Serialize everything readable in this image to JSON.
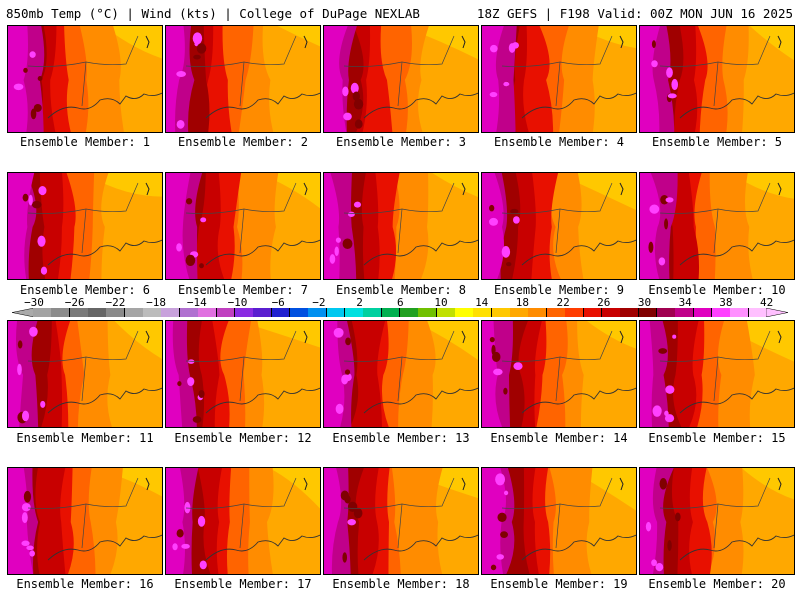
{
  "header": {
    "left": "850mb Temp (°C) | Wind (kts) | College of DuPage NEXLAB",
    "right": "18Z GEFS | F198 Valid: 00Z MON JUN 16 2025"
  },
  "members": [
    "Ensemble Member: 1",
    "Ensemble Member: 2",
    "Ensemble Member: 3",
    "Ensemble Member: 4",
    "Ensemble Member: 5",
    "Ensemble Member: 6",
    "Ensemble Member: 7",
    "Ensemble Member: 8",
    "Ensemble Member: 9",
    "Ensemble Member: 10",
    "Ensemble Member: 11",
    "Ensemble Member: 12",
    "Ensemble Member: 13",
    "Ensemble Member: 14",
    "Ensemble Member: 15",
    "Ensemble Member: 16",
    "Ensemble Member: 17",
    "Ensemble Member: 18",
    "Ensemble Member: 19",
    "Ensemble Member: 20"
  ],
  "colorbar": {
    "ticks": [
      "−30",
      "−26",
      "−22",
      "−18",
      "−14",
      "−10",
      "−6",
      "−2",
      "2",
      "6",
      "10",
      "14",
      "18",
      "22",
      "26",
      "30",
      "34",
      "38",
      "42"
    ],
    "colors": [
      "#a3a3a3",
      "#8c8c8c",
      "#7a7a7a",
      "#666666",
      "#8a8a8a",
      "#a5a5a5",
      "#bcbcbc",
      "#c8a2dc",
      "#b070d0",
      "#e070e0",
      "#c040c0",
      "#8a2be2",
      "#5a1fd0",
      "#2020d0",
      "#0050e0",
      "#0090f0",
      "#00c8f0",
      "#00e0e0",
      "#00d0a0",
      "#00b050",
      "#20a020",
      "#70c000",
      "#c0e000",
      "#ffff00",
      "#ffe000",
      "#ffc800",
      "#ffa800",
      "#ff8c00",
      "#ff6400",
      "#ff3c00",
      "#e81000",
      "#c80000",
      "#a00000",
      "#800000",
      "#a00050",
      "#c0008a",
      "#e000c0",
      "#ff40ff",
      "#ff90ff",
      "#ffc0ff"
    ]
  }
}
